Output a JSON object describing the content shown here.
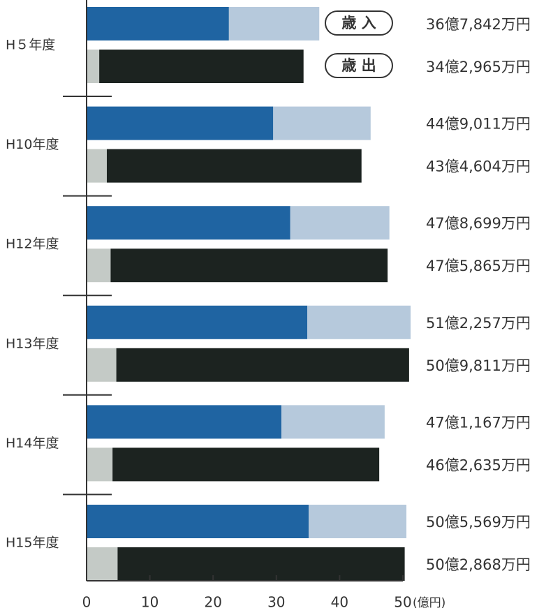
{
  "chart_data": {
    "type": "bar",
    "orientation": "horizontal",
    "categories": [
      "H５年度",
      "H10年度",
      "H12年度",
      "H13年度",
      "H14年度",
      "H15年度"
    ],
    "series": [
      {
        "name": "歳 入",
        "total_values": [
          36.7842,
          44.9011,
          47.8699,
          51.2257,
          47.1167,
          50.5569
        ],
        "dark_segment_values": [
          22.5,
          29.5,
          32.2,
          34.9,
          30.8,
          35.1
        ],
        "value_labels": [
          "36億7,842万円",
          "44億9,011万円",
          "47億8,699万円",
          "51億2,257万円",
          "47億1,167万円",
          "50億5,569万円"
        ]
      },
      {
        "name": "歳 出",
        "total_values": [
          34.2965,
          43.4604,
          47.5865,
          50.9811,
          46.2635,
          50.2868
        ],
        "light_segment_values": [
          2.0,
          3.2,
          3.8,
          4.7,
          4.1,
          4.9
        ],
        "value_labels": [
          "34億2,965万円",
          "43億4,604万円",
          "47億5,865万円",
          "50億9,811万円",
          "46億2,635万円",
          "50億2,868万円"
        ]
      }
    ],
    "xticks": [
      "0",
      "10",
      "20",
      "30",
      "40",
      "50"
    ],
    "xunit": "(億円)",
    "xlim": [
      0,
      52
    ],
    "colors": {
      "revenue_dark": "#1f64a2",
      "revenue_light": "#b6c9dc",
      "expense_dark": "#1c2320",
      "expense_light": "#c4cac6",
      "axis": "#333333",
      "text": "#333333"
    },
    "legend": "inline next to H５年度 bars"
  }
}
